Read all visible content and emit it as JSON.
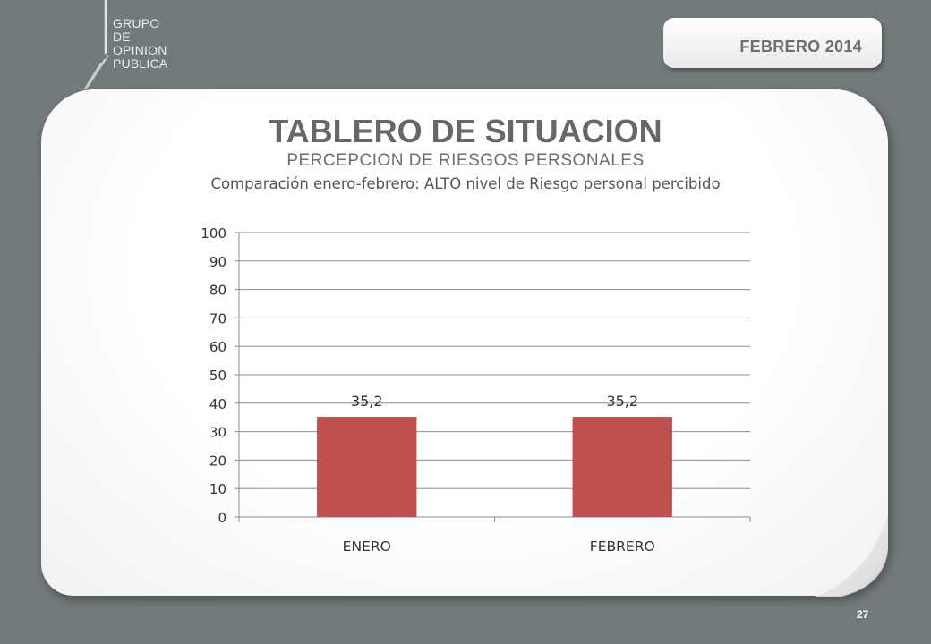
{
  "logo": {
    "lines": [
      "GRUPO",
      "DE",
      "OPINION",
      "PUBLICA"
    ]
  },
  "date_badge": "FEBRERO 2014",
  "title": "TABLERO DE SITUACION",
  "subtitle": "PERCEPCION DE RIESGOS PERSONALES",
  "subtitle2": "Comparación enero-febrero: ALTO nivel de Riesgo personal percibido",
  "page_number": "27",
  "colors": {
    "background": "#737a7b",
    "bar": "#c0504d"
  },
  "chart_data": {
    "type": "bar",
    "categories": [
      "ENERO",
      "FEBRERO"
    ],
    "values": [
      35.2,
      35.2
    ],
    "data_labels": [
      "35,2",
      "35,2"
    ],
    "ylim": [
      0,
      100
    ],
    "yticks": [
      0,
      10,
      20,
      30,
      40,
      50,
      60,
      70,
      80,
      90,
      100
    ],
    "grid": true,
    "legend": "none",
    "xlabel": "",
    "ylabel": ""
  }
}
